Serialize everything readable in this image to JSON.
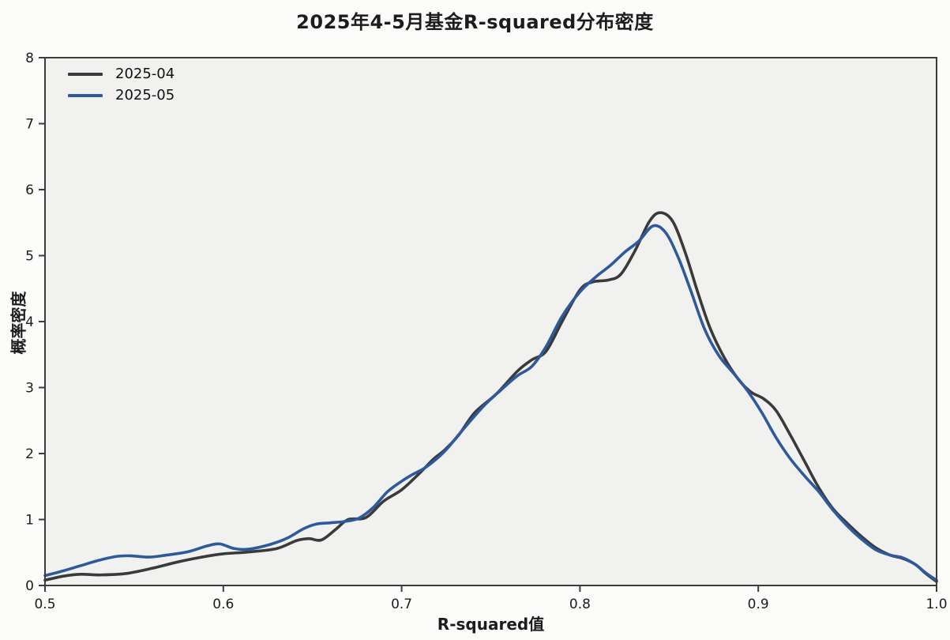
{
  "chart_data": {
    "type": "line",
    "title": "2025年4-5月基金R-squared分布密度",
    "xlabel": "R-squared值",
    "ylabel": "概率密度",
    "xlim": [
      0.5,
      1.0
    ],
    "ylim": [
      0,
      8
    ],
    "x_ticks": [
      "0.5",
      "0.6",
      "0.7",
      "0.8",
      "0.9",
      "1.0"
    ],
    "x_tick_values": [
      0.5,
      0.6,
      0.7,
      0.8,
      0.9,
      1.0
    ],
    "y_ticks": [
      "0",
      "1",
      "2",
      "3",
      "4",
      "5",
      "6",
      "7",
      "8"
    ],
    "y_tick_values": [
      0,
      1,
      2,
      3,
      4,
      5,
      6,
      7,
      8
    ],
    "grid": false,
    "legend_position": "upper-left",
    "plot_bg": "#f1f1ef",
    "spine_color": "#3c3c3c",
    "series": [
      {
        "name": "2025-04",
        "color": "#3a3a3a",
        "points": [
          [
            0.5,
            0.08
          ],
          [
            0.51,
            0.14
          ],
          [
            0.52,
            0.17
          ],
          [
            0.531,
            0.16
          ],
          [
            0.545,
            0.18
          ],
          [
            0.56,
            0.26
          ],
          [
            0.575,
            0.36
          ],
          [
            0.59,
            0.44
          ],
          [
            0.6,
            0.48
          ],
          [
            0.615,
            0.51
          ],
          [
            0.63,
            0.56
          ],
          [
            0.641,
            0.68
          ],
          [
            0.648,
            0.71
          ],
          [
            0.655,
            0.69
          ],
          [
            0.663,
            0.85
          ],
          [
            0.67,
            1.0
          ],
          [
            0.68,
            1.03
          ],
          [
            0.69,
            1.28
          ],
          [
            0.7,
            1.45
          ],
          [
            0.71,
            1.7
          ],
          [
            0.718,
            1.92
          ],
          [
            0.724,
            2.05
          ],
          [
            0.732,
            2.28
          ],
          [
            0.741,
            2.62
          ],
          [
            0.753,
            2.9
          ],
          [
            0.765,
            3.25
          ],
          [
            0.773,
            3.42
          ],
          [
            0.781,
            3.55
          ],
          [
            0.79,
            4.0
          ],
          [
            0.8,
            4.48
          ],
          [
            0.807,
            4.6
          ],
          [
            0.816,
            4.63
          ],
          [
            0.823,
            4.72
          ],
          [
            0.831,
            5.08
          ],
          [
            0.839,
            5.52
          ],
          [
            0.845,
            5.65
          ],
          [
            0.852,
            5.52
          ],
          [
            0.859,
            5.05
          ],
          [
            0.866,
            4.45
          ],
          [
            0.873,
            3.9
          ],
          [
            0.881,
            3.45
          ],
          [
            0.889,
            3.12
          ],
          [
            0.896,
            2.93
          ],
          [
            0.903,
            2.83
          ],
          [
            0.91,
            2.65
          ],
          [
            0.918,
            2.28
          ],
          [
            0.926,
            1.88
          ],
          [
            0.934,
            1.48
          ],
          [
            0.942,
            1.16
          ],
          [
            0.95,
            0.94
          ],
          [
            0.958,
            0.74
          ],
          [
            0.966,
            0.57
          ],
          [
            0.974,
            0.46
          ],
          [
            0.981,
            0.41
          ],
          [
            0.988,
            0.32
          ],
          [
            0.994,
            0.18
          ],
          [
            1.0,
            0.06
          ]
        ]
      },
      {
        "name": "2025-05",
        "color": "#2e5a9d",
        "points": [
          [
            0.5,
            0.15
          ],
          [
            0.51,
            0.22
          ],
          [
            0.52,
            0.3
          ],
          [
            0.53,
            0.38
          ],
          [
            0.54,
            0.44
          ],
          [
            0.548,
            0.45
          ],
          [
            0.558,
            0.43
          ],
          [
            0.568,
            0.46
          ],
          [
            0.58,
            0.51
          ],
          [
            0.591,
            0.6
          ],
          [
            0.598,
            0.63
          ],
          [
            0.606,
            0.56
          ],
          [
            0.614,
            0.55
          ],
          [
            0.626,
            0.62
          ],
          [
            0.636,
            0.72
          ],
          [
            0.645,
            0.86
          ],
          [
            0.652,
            0.93
          ],
          [
            0.66,
            0.95
          ],
          [
            0.668,
            0.97
          ],
          [
            0.676,
            1.02
          ],
          [
            0.684,
            1.18
          ],
          [
            0.692,
            1.42
          ],
          [
            0.7,
            1.58
          ],
          [
            0.706,
            1.68
          ],
          [
            0.714,
            1.8
          ],
          [
            0.724,
            2.03
          ],
          [
            0.734,
            2.35
          ],
          [
            0.746,
            2.72
          ],
          [
            0.756,
            2.97
          ],
          [
            0.765,
            3.18
          ],
          [
            0.773,
            3.32
          ],
          [
            0.781,
            3.62
          ],
          [
            0.79,
            4.08
          ],
          [
            0.8,
            4.45
          ],
          [
            0.809,
            4.68
          ],
          [
            0.817,
            4.85
          ],
          [
            0.825,
            5.05
          ],
          [
            0.833,
            5.22
          ],
          [
            0.841,
            5.45
          ],
          [
            0.848,
            5.35
          ],
          [
            0.855,
            4.98
          ],
          [
            0.862,
            4.48
          ],
          [
            0.87,
            3.88
          ],
          [
            0.878,
            3.48
          ],
          [
            0.886,
            3.22
          ],
          [
            0.894,
            2.95
          ],
          [
            0.902,
            2.62
          ],
          [
            0.91,
            2.24
          ],
          [
            0.918,
            1.92
          ],
          [
            0.926,
            1.66
          ],
          [
            0.934,
            1.42
          ],
          [
            0.942,
            1.14
          ],
          [
            0.95,
            0.9
          ],
          [
            0.958,
            0.7
          ],
          [
            0.966,
            0.54
          ],
          [
            0.974,
            0.46
          ],
          [
            0.981,
            0.42
          ],
          [
            0.988,
            0.32
          ],
          [
            0.994,
            0.19
          ],
          [
            1.0,
            0.08
          ]
        ]
      }
    ]
  }
}
